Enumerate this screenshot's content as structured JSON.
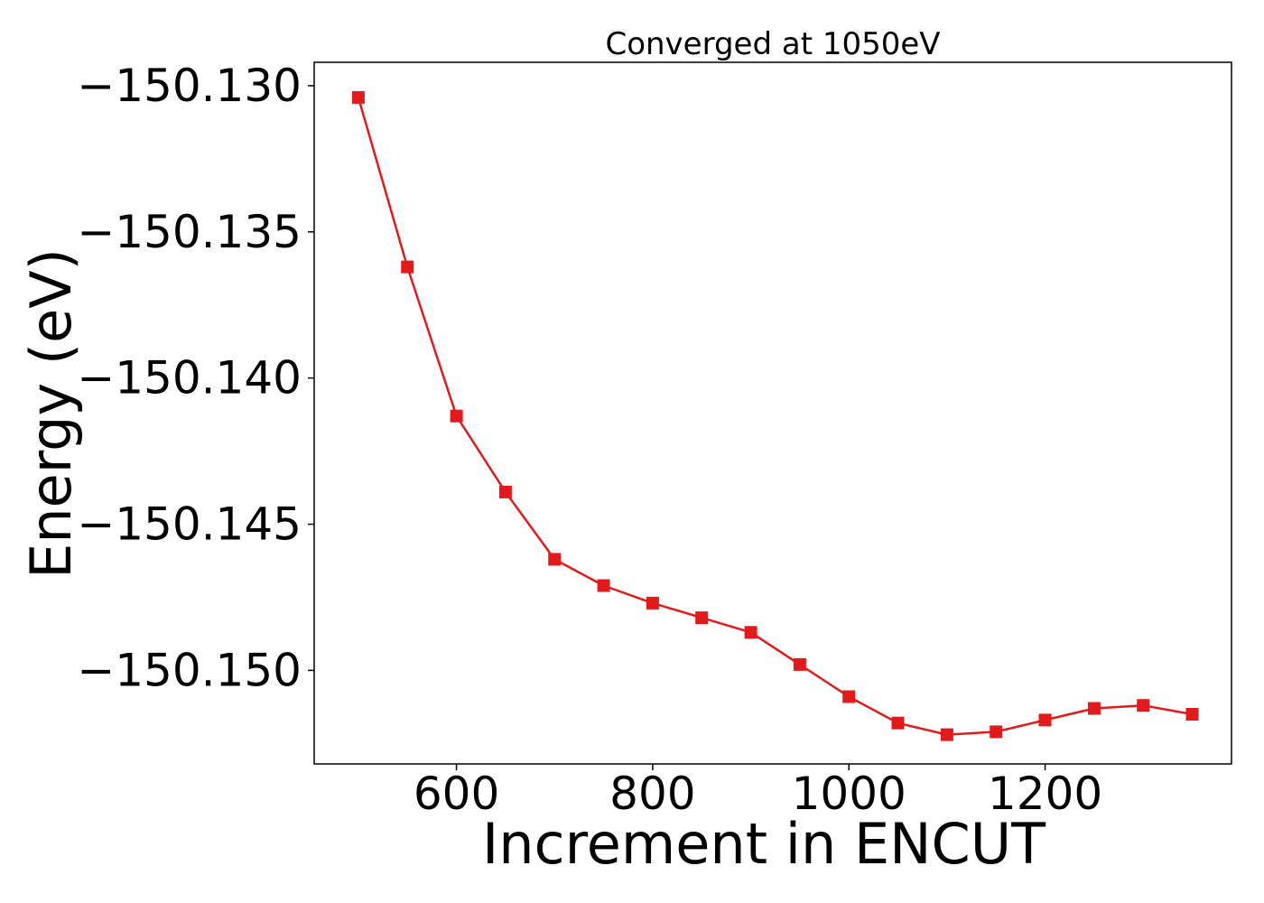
{
  "chart_data": {
    "type": "line",
    "title": "Converged at 1050eV",
    "xlabel": "Increment in ENCUT",
    "ylabel": "Energy (eV)",
    "xlim": [
      455,
      1390
    ],
    "ylim": [
      -150.1532,
      -150.1292
    ],
    "xticks": [
      {
        "value": 600,
        "label": "600"
      },
      {
        "value": 800,
        "label": "800"
      },
      {
        "value": 1000,
        "label": "1000"
      },
      {
        "value": 1200,
        "label": "1200"
      }
    ],
    "yticks": [
      {
        "value": -150.13,
        "label": "−150.130"
      },
      {
        "value": -150.135,
        "label": "−150.135"
      },
      {
        "value": -150.14,
        "label": "−150.140"
      },
      {
        "value": -150.145,
        "label": "−150.145"
      },
      {
        "value": -150.15,
        "label": "−150.150"
      }
    ],
    "grid": false,
    "series": [
      {
        "color": "#e31a1c",
        "marker": "square",
        "x": [
          500,
          550,
          600,
          650,
          700,
          750,
          800,
          850,
          900,
          950,
          1000,
          1050,
          1100,
          1150,
          1200,
          1250,
          1300,
          1350
        ],
        "values": [
          -150.1304,
          -150.1362,
          -150.1413,
          -150.1439,
          -150.1462,
          -150.1471,
          -150.1477,
          -150.1482,
          -150.1487,
          -150.1498,
          -150.1509,
          -150.1518,
          -150.1522,
          -150.1521,
          -150.1517,
          -150.1513,
          -150.1512,
          -150.1515
        ]
      }
    ]
  }
}
